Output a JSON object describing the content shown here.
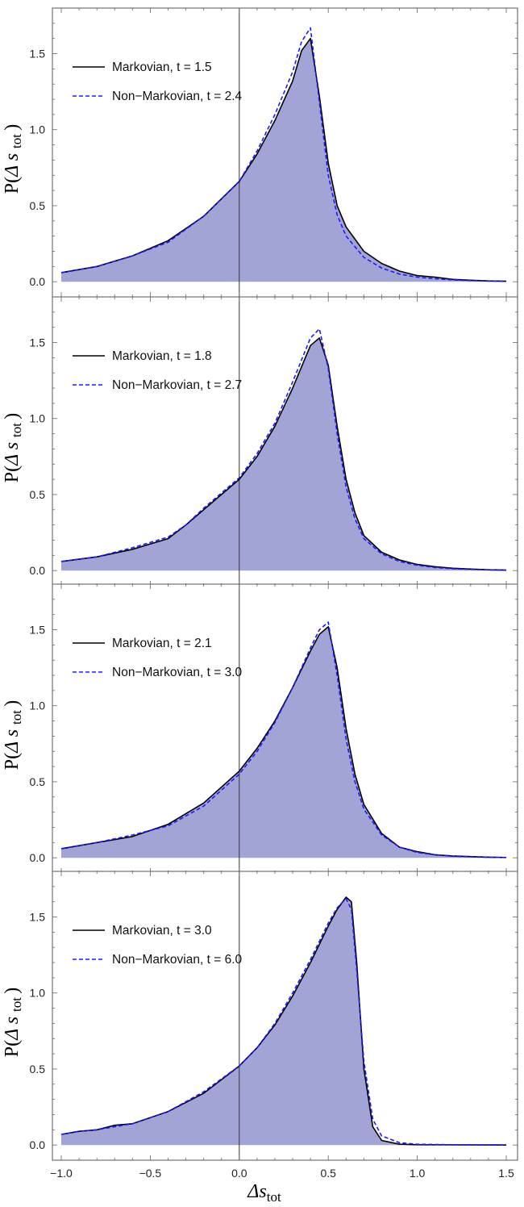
{
  "figure": {
    "ylabel_main": "P(",
    "ylabel_delta": "Δ",
    "ylabel_s": "s",
    "ylabel_sub": "tot",
    "ylabel_close": ")",
    "xlabel_main": "Δs",
    "xlabel_sub": "tot"
  },
  "colors": {
    "markovian": "#000000",
    "non_markovian": "#1a1aff",
    "fill": "#a3a4d6",
    "frame": "#555555",
    "zero_line": "#333333"
  },
  "chart_data": [
    {
      "type": "line",
      "xlim": [
        -1.0,
        1.5
      ],
      "ylim": [
        -0.1,
        1.8
      ],
      "xticks": [
        "−1.0",
        "−0.5",
        "0.0",
        "0.5",
        "1.0",
        "1.5"
      ],
      "yticks": [
        "0.0",
        "0.5",
        "1.0",
        "1.5"
      ],
      "legend_position": "top-left",
      "series": [
        {
          "name": "Markovian, t = 1.5",
          "style": "solid",
          "x": [
            -1.0,
            -0.8,
            -0.6,
            -0.4,
            -0.2,
            0.0,
            0.1,
            0.2,
            0.3,
            0.35,
            0.4,
            0.45,
            0.5,
            0.55,
            0.6,
            0.7,
            0.8,
            0.9,
            1.0,
            1.1,
            1.2,
            1.3,
            1.4,
            1.5
          ],
          "y": [
            0.06,
            0.1,
            0.17,
            0.27,
            0.43,
            0.66,
            0.84,
            1.06,
            1.32,
            1.52,
            1.6,
            1.22,
            0.78,
            0.5,
            0.36,
            0.2,
            0.12,
            0.07,
            0.04,
            0.03,
            0.015,
            0.01,
            0.005,
            0.003
          ]
        },
        {
          "name": "Non−Markovian, t = 2.4",
          "style": "dashed",
          "x": [
            -1.0,
            -0.8,
            -0.6,
            -0.4,
            -0.2,
            0.0,
            0.1,
            0.2,
            0.3,
            0.35,
            0.4,
            0.45,
            0.5,
            0.55,
            0.6,
            0.7,
            0.8,
            0.9,
            1.0,
            1.1,
            1.2,
            1.3,
            1.4,
            1.5
          ],
          "y": [
            0.06,
            0.1,
            0.17,
            0.26,
            0.43,
            0.66,
            0.86,
            1.1,
            1.38,
            1.58,
            1.67,
            1.18,
            0.7,
            0.44,
            0.3,
            0.16,
            0.09,
            0.05,
            0.03,
            0.02,
            0.012,
            0.008,
            0.004,
            0.002
          ]
        }
      ]
    },
    {
      "type": "line",
      "xlim": [
        -1.0,
        1.5
      ],
      "ylim": [
        -0.1,
        1.8
      ],
      "xticks": [
        "−1.0",
        "−0.5",
        "0.0",
        "0.5",
        "1.0",
        "1.5"
      ],
      "yticks": [
        "0.0",
        "0.5",
        "1.0",
        "1.5"
      ],
      "legend_position": "top-left",
      "series": [
        {
          "name": "Markovian, t = 1.8",
          "style": "solid",
          "x": [
            -1.0,
            -0.8,
            -0.6,
            -0.4,
            -0.3,
            -0.2,
            0.0,
            0.1,
            0.2,
            0.3,
            0.4,
            0.45,
            0.5,
            0.55,
            0.6,
            0.65,
            0.7,
            0.8,
            0.9,
            1.0,
            1.1,
            1.2,
            1.3,
            1.4,
            1.5
          ],
          "y": [
            0.06,
            0.09,
            0.14,
            0.21,
            0.3,
            0.4,
            0.6,
            0.75,
            0.95,
            1.2,
            1.48,
            1.53,
            1.35,
            0.95,
            0.6,
            0.38,
            0.23,
            0.12,
            0.07,
            0.04,
            0.025,
            0.015,
            0.01,
            0.005,
            0.003
          ]
        },
        {
          "name": "Non−Markovian, t = 2.7",
          "style": "dashed",
          "x": [
            -1.0,
            -0.8,
            -0.6,
            -0.4,
            -0.3,
            -0.2,
            0.0,
            0.1,
            0.2,
            0.3,
            0.4,
            0.45,
            0.5,
            0.55,
            0.6,
            0.65,
            0.7,
            0.8,
            0.9,
            1.0,
            1.1,
            1.2,
            1.3,
            1.4,
            1.5
          ],
          "y": [
            0.06,
            0.09,
            0.15,
            0.22,
            0.3,
            0.41,
            0.61,
            0.77,
            0.97,
            1.24,
            1.53,
            1.59,
            1.33,
            0.9,
            0.55,
            0.34,
            0.21,
            0.11,
            0.06,
            0.035,
            0.02,
            0.012,
            0.008,
            0.004,
            0.002
          ]
        }
      ]
    },
    {
      "type": "line",
      "xlim": [
        -1.0,
        1.5
      ],
      "ylim": [
        -0.1,
        1.8
      ],
      "xticks": [
        "−1.0",
        "−0.5",
        "0.0",
        "0.5",
        "1.0",
        "1.5"
      ],
      "yticks": [
        "0.0",
        "0.5",
        "1.0",
        "1.5"
      ],
      "legend_position": "top-left",
      "series": [
        {
          "name": "Markovian, t = 2.1",
          "style": "solid",
          "x": [
            -1.0,
            -0.8,
            -0.6,
            -0.4,
            -0.2,
            0.0,
            0.1,
            0.2,
            0.3,
            0.4,
            0.45,
            0.5,
            0.55,
            0.6,
            0.65,
            0.7,
            0.8,
            0.9,
            1.0,
            1.1,
            1.2,
            1.3,
            1.4,
            1.5
          ],
          "y": [
            0.06,
            0.1,
            0.14,
            0.22,
            0.36,
            0.57,
            0.72,
            0.9,
            1.12,
            1.36,
            1.47,
            1.52,
            1.25,
            0.85,
            0.55,
            0.35,
            0.16,
            0.07,
            0.04,
            0.02,
            0.012,
            0.008,
            0.004,
            0.002
          ]
        },
        {
          "name": "Non−Markovian, t = 3.0",
          "style": "dashed",
          "x": [
            -1.0,
            -0.8,
            -0.6,
            -0.4,
            -0.2,
            0.0,
            0.1,
            0.2,
            0.3,
            0.4,
            0.45,
            0.5,
            0.55,
            0.6,
            0.65,
            0.7,
            0.8,
            0.9,
            1.0,
            1.1,
            1.2,
            1.3,
            1.4,
            1.5
          ],
          "y": [
            0.06,
            0.1,
            0.15,
            0.21,
            0.34,
            0.55,
            0.7,
            0.89,
            1.12,
            1.38,
            1.5,
            1.55,
            1.2,
            0.78,
            0.5,
            0.32,
            0.15,
            0.07,
            0.035,
            0.02,
            0.01,
            0.006,
            0.003,
            0.002
          ]
        }
      ]
    },
    {
      "type": "line",
      "xlim": [
        -1.0,
        1.5
      ],
      "ylim": [
        -0.1,
        1.8
      ],
      "xticks": [
        "−1.0",
        "−0.5",
        "0.0",
        "0.5",
        "1.0",
        "1.5"
      ],
      "yticks": [
        "0.0",
        "0.5",
        "1.0",
        "1.5"
      ],
      "legend_position": "top-left",
      "series": [
        {
          "name": "Markovian, t = 3.0",
          "style": "solid",
          "x": [
            -1.0,
            -0.9,
            -0.8,
            -0.7,
            -0.6,
            -0.4,
            -0.2,
            0.0,
            0.1,
            0.2,
            0.3,
            0.4,
            0.5,
            0.55,
            0.6,
            0.63,
            0.66,
            0.7,
            0.75,
            0.8,
            0.9,
            1.0,
            1.2,
            1.5
          ],
          "y": [
            0.07,
            0.09,
            0.1,
            0.13,
            0.14,
            0.22,
            0.34,
            0.52,
            0.64,
            0.79,
            0.98,
            1.2,
            1.44,
            1.55,
            1.63,
            1.6,
            1.2,
            0.5,
            0.12,
            0.03,
            0.005,
            0.002,
            0.001,
            0.0
          ]
        },
        {
          "name": "Non−Markovian, t = 6.0",
          "style": "dashed",
          "x": [
            -1.0,
            -0.9,
            -0.8,
            -0.7,
            -0.6,
            -0.4,
            -0.2,
            0.0,
            0.1,
            0.2,
            0.3,
            0.4,
            0.5,
            0.55,
            0.6,
            0.63,
            0.66,
            0.7,
            0.75,
            0.8,
            0.9,
            1.0,
            1.2,
            1.5
          ],
          "y": [
            0.07,
            0.09,
            0.1,
            0.12,
            0.14,
            0.22,
            0.35,
            0.52,
            0.64,
            0.8,
            1.0,
            1.22,
            1.46,
            1.56,
            1.62,
            1.55,
            1.15,
            0.55,
            0.17,
            0.06,
            0.015,
            0.005,
            0.002,
            0.001
          ]
        }
      ]
    }
  ]
}
